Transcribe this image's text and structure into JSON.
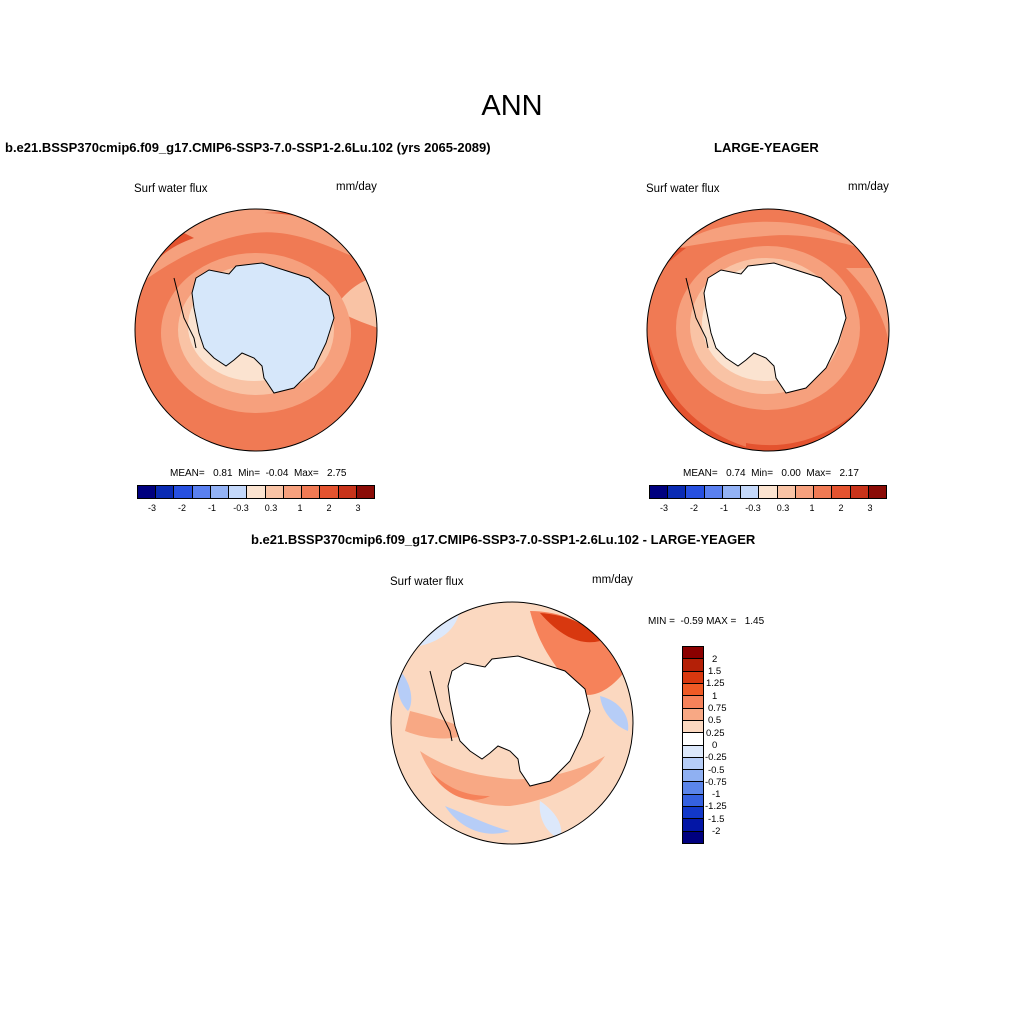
{
  "title": "ANN",
  "panels": [
    {
      "id": "case",
      "title": "b.e21.BSSP370cmip6.f09_g17.CMIP6-SSP3-7.0-SSP1-2.6Lu.102 (yrs 2065-2089)",
      "variable": "Surf water flux",
      "units": "mm/day",
      "stats": "MEAN=   0.81  Min=  -0.04  Max=   2.75",
      "colorbar_labels": [
        "-3",
        "-2",
        "-1",
        "-0.3",
        "0.3",
        "1",
        "2",
        "3"
      ]
    },
    {
      "id": "obs",
      "title": "LARGE-YEAGER",
      "variable": "Surf water flux",
      "units": "mm/day",
      "stats": "MEAN=   0.74  Min=   0.00  Max=   2.17",
      "colorbar_labels": [
        "-3",
        "-2",
        "-1",
        "-0.3",
        "0.3",
        "1",
        "2",
        "3"
      ]
    },
    {
      "id": "diff",
      "title": "b.e21.BSSP370cmip6.f09_g17.CMIP6-SSP3-7.0-SSP1-2.6Lu.102 - LARGE-YEAGER",
      "variable": "Surf water flux",
      "units": "mm/day",
      "stats": "MIN =  -0.59 MAX =   1.45",
      "colorbar_labels": [
        "2",
        "1.5",
        "1.25",
        "1",
        "0.75",
        "0.5",
        "0.25",
        "0",
        "-0.25",
        "-0.5",
        "-0.75",
        "-1",
        "-1.25",
        "-1.5",
        "-2"
      ]
    }
  ],
  "colors": {
    "abs_scale": [
      "#00007f",
      "#0a2bb3",
      "#2750e0",
      "#5a80f0",
      "#93b2f5",
      "#c4d8fa",
      "#fbe3d0",
      "#f9c3a5",
      "#f6a07d",
      "#f07a54",
      "#e4532f",
      "#c8331a",
      "#8b0c07"
    ],
    "diff_scale": [
      "#8b0000",
      "#b42007",
      "#d8380f",
      "#ef5a25",
      "#f6825a",
      "#f8a884",
      "#fbd8c0",
      "#ffffff",
      "#dce8fb",
      "#b6cdf7",
      "#8fb0f2",
      "#5b85ea",
      "#3561e0",
      "#1238c9",
      "#0316a6",
      "#00007f"
    ],
    "land_fill_case": "#d6e7fa"
  }
}
